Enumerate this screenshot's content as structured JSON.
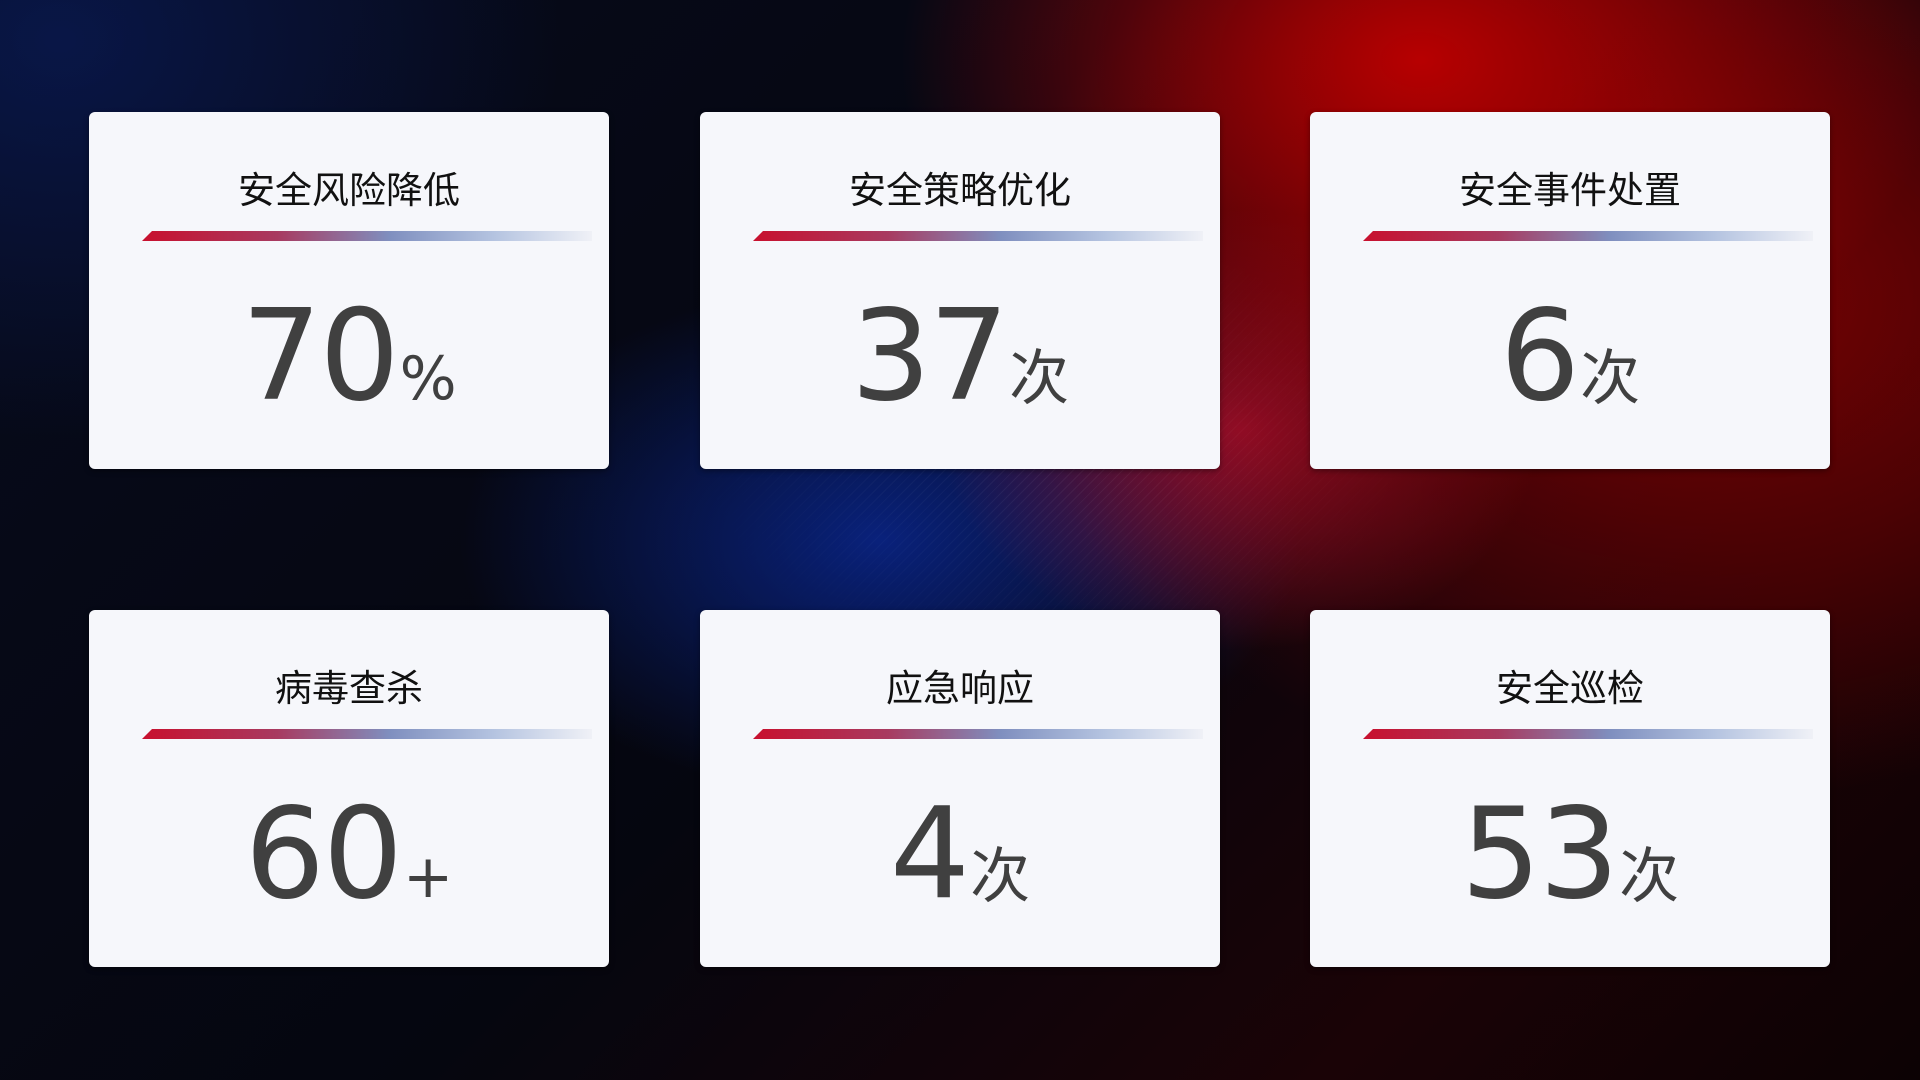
{
  "cards": [
    {
      "title": "安全风险降低",
      "value": "70",
      "unit": "%"
    },
    {
      "title": "安全策略优化",
      "value": "37",
      "unit": "次"
    },
    {
      "title": "安全事件处置",
      "value": "6",
      "unit": "次"
    },
    {
      "title": "病毒查杀",
      "value": "60",
      "unit": "+"
    },
    {
      "title": "应急响应",
      "value": "4",
      "unit": "次"
    },
    {
      "title": "安全巡检",
      "value": "53",
      "unit": "次"
    }
  ],
  "colors": {
    "accent_red": "#c8102e",
    "accent_blue": "#7f8fbf",
    "card_bg": "#f6f7fb",
    "value_text": "#404040"
  }
}
